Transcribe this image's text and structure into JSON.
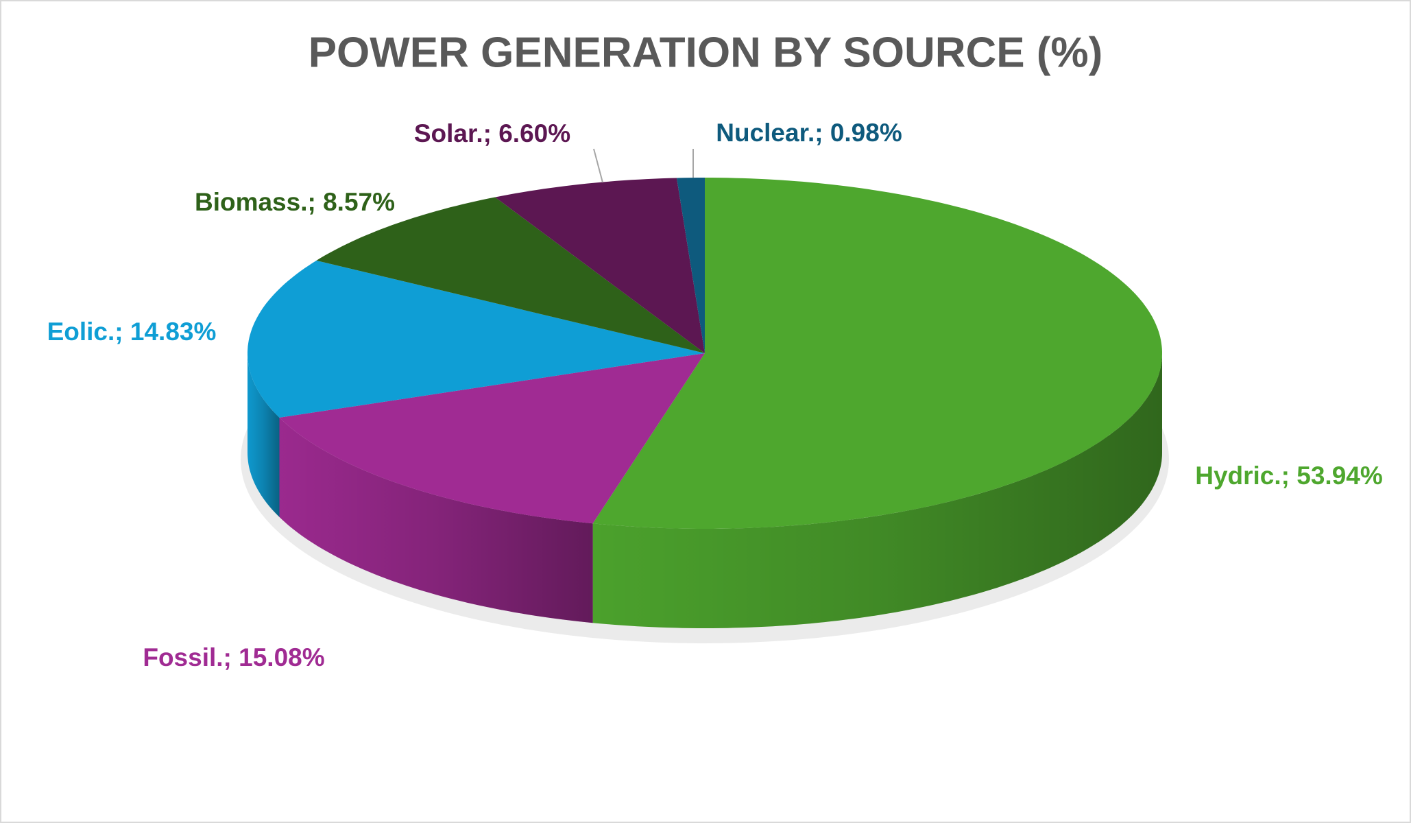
{
  "chart_data": {
    "type": "pie3d",
    "title": "POWER GENERATION BY SOURCE (%)",
    "values": [
      53.94,
      15.08,
      14.83,
      8.57,
      6.6,
      0.98
    ],
    "value_labels": [
      "Hydric.; 53.94%",
      "Fossil.; 15.08%",
      "Eolic.; 14.83%",
      "Biomass.; 8.57%",
      "Solar.; 6.60%",
      "Nuclear.; 0.98%"
    ],
    "colors": [
      "#4ea72e",
      "#a02b93",
      "#0f9ed5",
      "#2e6119",
      "#5c1752",
      "#0e5a7d"
    ]
  }
}
